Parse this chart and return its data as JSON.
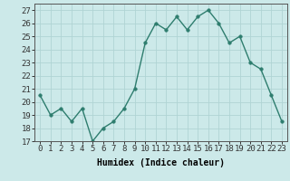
{
  "x": [
    0,
    1,
    2,
    3,
    4,
    5,
    6,
    7,
    8,
    9,
    10,
    11,
    12,
    13,
    14,
    15,
    16,
    17,
    18,
    19,
    20,
    21,
    22,
    23
  ],
  "y": [
    20.5,
    19.0,
    19.5,
    18.5,
    19.5,
    17.0,
    18.0,
    18.5,
    19.5,
    21.0,
    24.5,
    26.0,
    25.5,
    26.5,
    25.5,
    26.5,
    27.0,
    26.0,
    24.5,
    25.0,
    23.0,
    22.5,
    20.5,
    18.5
  ],
  "line_color": "#2e7d6e",
  "marker_color": "#2e7d6e",
  "bg_color": "#cce9e9",
  "grid_color": "#b0d4d4",
  "xlabel": "Humidex (Indice chaleur)",
  "ylabel_ticks": [
    17,
    18,
    19,
    20,
    21,
    22,
    23,
    24,
    25,
    26,
    27
  ],
  "xlim": [
    -0.5,
    23.5
  ],
  "ylim": [
    17,
    27.5
  ],
  "xlabel_fontsize": 7,
  "tick_fontsize": 6.5,
  "line_width": 1.0,
  "marker_size": 2.5
}
